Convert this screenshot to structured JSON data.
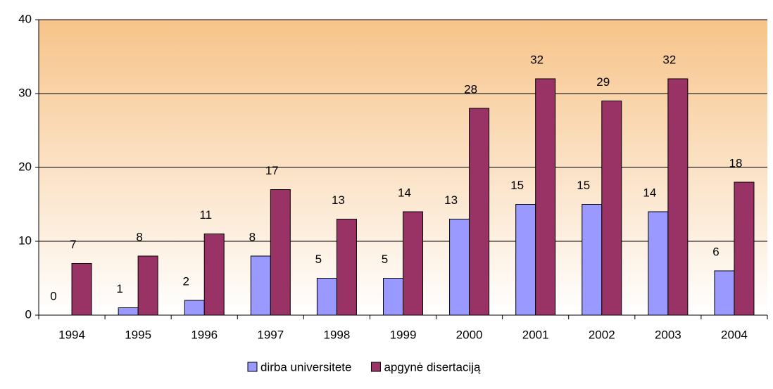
{
  "chart_data": {
    "type": "bar",
    "categories": [
      "1994",
      "1995",
      "1996",
      "1997",
      "1998",
      "1999",
      "2000",
      "2001",
      "2002",
      "2003",
      "2004"
    ],
    "series": [
      {
        "name": "dirba universitete",
        "color": "#9999ff",
        "values": [
          0,
          1,
          2,
          8,
          5,
          5,
          13,
          15,
          15,
          14,
          6
        ]
      },
      {
        "name": "apgynė disertaciją",
        "color": "#993366",
        "values": [
          7,
          8,
          11,
          17,
          13,
          14,
          28,
          32,
          29,
          32,
          18
        ]
      }
    ],
    "ylim": [
      0,
      40
    ],
    "yticks": [
      0,
      10,
      20,
      30,
      40
    ],
    "grid": true,
    "legend": "bottom"
  }
}
